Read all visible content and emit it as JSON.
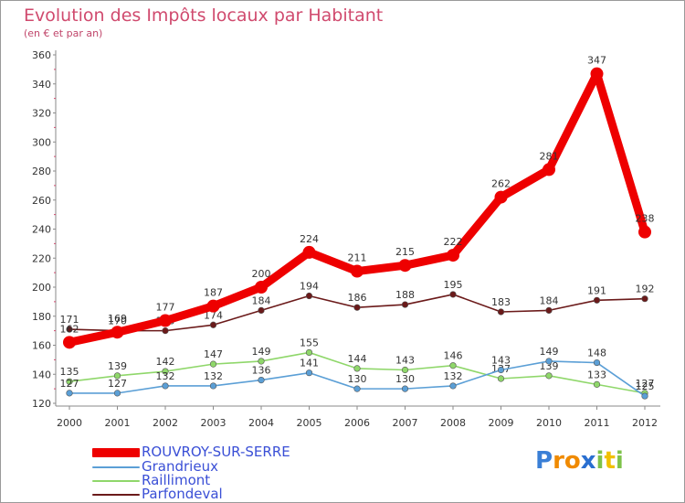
{
  "chart_data": {
    "type": "line",
    "title": "Evolution des Impôts locaux par Habitant",
    "subtitle": "(en € et par an)",
    "xlabel": "",
    "ylabel": "",
    "categories": [
      "2000",
      "2001",
      "2002",
      "2003",
      "2004",
      "2005",
      "2006",
      "2007",
      "2008",
      "2009",
      "2010",
      "2011",
      "2012"
    ],
    "ylim": [
      120,
      360
    ],
    "yticks": [
      120,
      140,
      160,
      180,
      200,
      220,
      240,
      260,
      280,
      300,
      320,
      340,
      360
    ],
    "grid": false,
    "series": [
      {
        "name": "Parfondeval",
        "color": "#6b1a1a",
        "values": [
          171,
          170,
          170,
          174,
          184,
          194,
          186,
          188,
          195,
          183,
          184,
          191,
          192
        ]
      },
      {
        "name": "Raillimont",
        "color": "#8fd76a",
        "values": [
          135,
          139,
          142,
          147,
          149,
          155,
          144,
          143,
          146,
          137,
          139,
          133,
          127
        ]
      },
      {
        "name": "Grandrieux",
        "color": "#5b9fd6",
        "values": [
          127,
          127,
          132,
          132,
          136,
          141,
          130,
          130,
          132,
          143,
          149,
          148,
          125
        ]
      },
      {
        "name": "ROUVROY-SUR-SERRE",
        "color": "#ee0000",
        "values": [
          162,
          169,
          177,
          187,
          200,
          224,
          211,
          215,
          222,
          262,
          281,
          347,
          238
        ]
      }
    ],
    "legend": [
      "ROUVROY-SUR-SERRE",
      "Grandrieux",
      "Raillimont",
      "Parfondeval"
    ]
  },
  "logo": {
    "letters": [
      "P",
      "r",
      "o",
      "x",
      "i",
      "t",
      "i"
    ]
  }
}
